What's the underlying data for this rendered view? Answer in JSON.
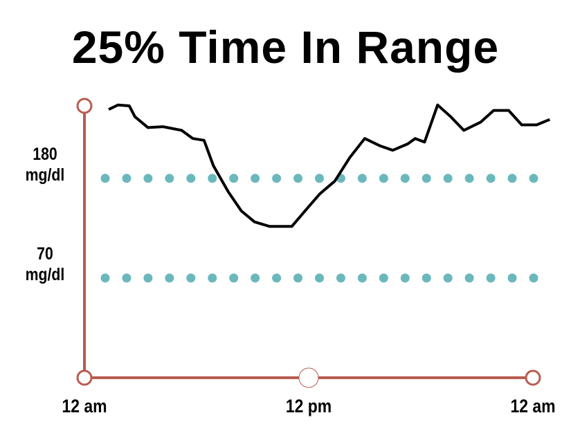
{
  "chart_data": {
    "type": "line",
    "title": "25% Time In Range",
    "x": [
      1.3,
      1.8,
      2.4,
      2.7,
      3.4,
      4.2,
      5.2,
      5.8,
      6.4,
      6.9,
      7.7,
      8.4,
      9.1,
      9.9,
      11.1,
      11.8,
      12.6,
      13.4,
      14.2,
      15.0,
      15.8,
      16.5,
      17.3,
      17.7,
      18.2,
      18.9,
      19.6,
      20.3,
      21.2,
      21.9,
      22.7,
      23.4,
      24.2,
      24.9
    ],
    "series": [
      {
        "color": "#000000",
        "values": [
          256,
          261,
          260,
          248,
          236,
          237,
          233,
          224,
          222,
          194,
          165,
          144,
          132,
          127,
          127,
          144,
          163,
          177,
          203,
          224,
          216,
          211,
          218,
          224,
          220,
          261,
          248,
          233,
          242,
          255,
          255,
          239,
          239,
          245
        ]
      }
    ],
    "xlim": [
      0,
      24
    ],
    "xticks": [
      {
        "value": 0,
        "label": "12 am"
      },
      {
        "value": 12,
        "label": "12 pm"
      },
      {
        "value": 24,
        "label": "12 am"
      }
    ],
    "ylim": [
      -40,
      260
    ],
    "yticks": [
      {
        "value": 180,
        "label": "180\nmg/dl"
      },
      {
        "value": 70,
        "label": "70\nmg/dl"
      }
    ],
    "grid": true,
    "grid_color": "#6bb8bc",
    "axis_color": "#b85c4f"
  }
}
